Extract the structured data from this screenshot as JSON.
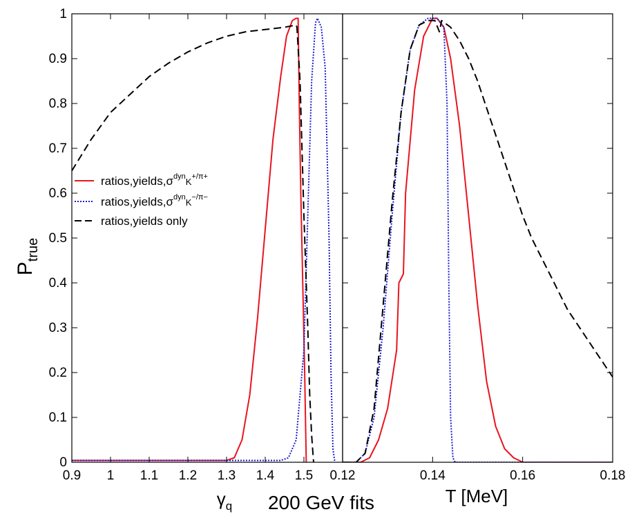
{
  "chart_data": {
    "type": "line",
    "caption": "200 GeV fits",
    "ylabel": {
      "main": "P",
      "sub": "true"
    },
    "yticks": [
      "0",
      "0.1",
      "0.2",
      "0.3",
      "0.4",
      "0.5",
      "0.6",
      "0.7",
      "0.8",
      "0.9",
      "1"
    ],
    "ylim": [
      0,
      1
    ],
    "grid": false,
    "legend": {
      "placement": "left-middle",
      "entries": [
        {
          "series": "red",
          "text_main": "ratios,yields,σ",
          "sup1": "dyn",
          "text_k": "K",
          "sup2": "+/π+"
        },
        {
          "series": "blue",
          "text_main": "ratios,yields,σ",
          "sup1": "dyn",
          "text_k": "K",
          "sup2": "−/π−"
        },
        {
          "series": "black",
          "text_main": "ratios,yields only"
        }
      ]
    },
    "colors": {
      "red": "#e8141e",
      "blue": "#1a1ad0",
      "black": "#000000"
    },
    "panels": [
      {
        "id": "gamma",
        "xlabel": {
          "main": "γ",
          "sub": "q"
        },
        "xlim": [
          0.9,
          1.6
        ],
        "xticks": [
          "0.9",
          "1",
          "1.1",
          "1.2",
          "1.3",
          "1.4",
          "1.5"
        ],
        "series": [
          {
            "key": "red",
            "style": "solid",
            "points": [
              [
                0.9,
                0.004
              ],
              [
                1.3,
                0.004
              ],
              [
                1.32,
                0.01
              ],
              [
                1.34,
                0.05
              ],
              [
                1.36,
                0.15
              ],
              [
                1.38,
                0.32
              ],
              [
                1.4,
                0.52
              ],
              [
                1.42,
                0.72
              ],
              [
                1.44,
                0.86
              ],
              [
                1.455,
                0.95
              ],
              [
                1.47,
                0.985
              ],
              [
                1.48,
                0.99
              ],
              [
                1.485,
                0.99
              ],
              [
                1.488,
                0.8
              ],
              [
                1.492,
                0.6
              ],
              [
                1.497,
                0.4
              ],
              [
                1.502,
                0.2
              ],
              [
                1.505,
                0.05
              ],
              [
                1.506,
                0.0
              ]
            ]
          },
          {
            "key": "blue",
            "style": "dotted",
            "points": [
              [
                0.9,
                0.004
              ],
              [
                1.44,
                0.004
              ],
              [
                1.46,
                0.01
              ],
              [
                1.48,
                0.05
              ],
              [
                1.5,
                0.25
              ],
              [
                1.51,
                0.55
              ],
              [
                1.52,
                0.85
              ],
              [
                1.53,
                0.98
              ],
              [
                1.535,
                0.99
              ],
              [
                1.545,
                0.97
              ],
              [
                1.555,
                0.88
              ],
              [
                1.565,
                0.5
              ],
              [
                1.57,
                0.2
              ],
              [
                1.575,
                0.03
              ],
              [
                1.58,
                0.0
              ]
            ]
          },
          {
            "key": "black",
            "style": "dashed",
            "points": [
              [
                0.9,
                0.65
              ],
              [
                0.95,
                0.72
              ],
              [
                1.0,
                0.78
              ],
              [
                1.05,
                0.82
              ],
              [
                1.1,
                0.86
              ],
              [
                1.15,
                0.89
              ],
              [
                1.2,
                0.915
              ],
              [
                1.25,
                0.935
              ],
              [
                1.3,
                0.95
              ],
              [
                1.35,
                0.96
              ],
              [
                1.4,
                0.965
              ],
              [
                1.45,
                0.97
              ],
              [
                1.48,
                0.975
              ],
              [
                1.482,
                0.97
              ],
              [
                1.49,
                0.85
              ],
              [
                1.5,
                0.55
              ],
              [
                1.51,
                0.3
              ],
              [
                1.515,
                0.15
              ],
              [
                1.52,
                0.06
              ],
              [
                1.525,
                0.0
              ]
            ]
          }
        ]
      },
      {
        "id": "temperature",
        "xlabel": {
          "main": "T [MeV]",
          "sub": ""
        },
        "xlim": [
          0.12,
          0.18
        ],
        "xticks": [
          "0.12",
          "0.14",
          "0.16",
          "0.18"
        ],
        "series": [
          {
            "key": "red",
            "style": "solid",
            "points": [
              [
                0.12,
                0.0
              ],
              [
                0.124,
                0.0
              ],
              [
                0.126,
                0.01
              ],
              [
                0.128,
                0.05
              ],
              [
                0.13,
                0.12
              ],
              [
                0.132,
                0.25
              ],
              [
                0.1325,
                0.4
              ],
              [
                0.1335,
                0.42
              ],
              [
                0.134,
                0.6
              ],
              [
                0.136,
                0.83
              ],
              [
                0.138,
                0.95
              ],
              [
                0.14,
                0.99
              ],
              [
                0.141,
                0.99
              ],
              [
                0.1425,
                0.97
              ],
              [
                0.144,
                0.9
              ],
              [
                0.146,
                0.75
              ],
              [
                0.148,
                0.55
              ],
              [
                0.15,
                0.35
              ],
              [
                0.152,
                0.18
              ],
              [
                0.154,
                0.08
              ],
              [
                0.156,
                0.03
              ],
              [
                0.158,
                0.01
              ],
              [
                0.16,
                0.0
              ],
              [
                0.18,
                0.0
              ]
            ]
          },
          {
            "key": "blue",
            "style": "dotted",
            "points": [
              [
                0.12,
                0.0
              ],
              [
                0.123,
                0.0
              ],
              [
                0.125,
                0.02
              ],
              [
                0.127,
                0.1
              ],
              [
                0.129,
                0.3
              ],
              [
                0.131,
                0.55
              ],
              [
                0.133,
                0.78
              ],
              [
                0.135,
                0.92
              ],
              [
                0.137,
                0.975
              ],
              [
                0.139,
                0.99
              ],
              [
                0.141,
                0.99
              ],
              [
                0.1425,
                0.97
              ],
              [
                0.1432,
                0.8
              ],
              [
                0.1436,
                0.4
              ],
              [
                0.144,
                0.1
              ],
              [
                0.1445,
                0.01
              ],
              [
                0.145,
                0.0
              ],
              [
                0.18,
                0.0
              ]
            ]
          },
          {
            "key": "black",
            "style": "dashed",
            "points": [
              [
                0.12,
                0.0
              ],
              [
                0.123,
                0.0
              ],
              [
                0.125,
                0.02
              ],
              [
                0.127,
                0.12
              ],
              [
                0.129,
                0.35
              ],
              [
                0.131,
                0.58
              ],
              [
                0.133,
                0.78
              ],
              [
                0.135,
                0.92
              ],
              [
                0.137,
                0.975
              ],
              [
                0.139,
                0.985
              ],
              [
                0.1405,
                0.985
              ],
              [
                0.1415,
                0.96
              ],
              [
                0.142,
                0.985
              ],
              [
                0.144,
                0.97
              ],
              [
                0.146,
                0.94
              ],
              [
                0.148,
                0.9
              ],
              [
                0.15,
                0.85
              ],
              [
                0.152,
                0.79
              ],
              [
                0.154,
                0.73
              ],
              [
                0.156,
                0.67
              ],
              [
                0.158,
                0.61
              ],
              [
                0.16,
                0.55
              ],
              [
                0.162,
                0.5
              ],
              [
                0.164,
                0.46
              ],
              [
                0.166,
                0.42
              ],
              [
                0.168,
                0.38
              ],
              [
                0.17,
                0.34
              ],
              [
                0.172,
                0.31
              ],
              [
                0.174,
                0.28
              ],
              [
                0.176,
                0.25
              ],
              [
                0.178,
                0.22
              ],
              [
                0.18,
                0.19
              ]
            ]
          }
        ]
      }
    ]
  }
}
